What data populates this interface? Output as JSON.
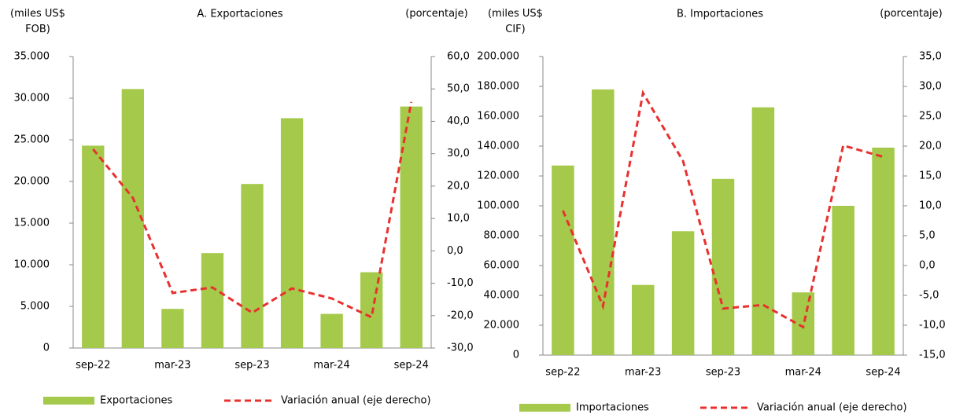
{
  "chart_data": [
    {
      "type": "combo",
      "title": "A. Exportaciones",
      "y_label": "(miles US$ FOB)",
      "y2_label": "(porcentaje)",
      "categories": [
        "sep-22",
        null,
        "mar-23",
        null,
        "sep-23",
        null,
        "mar-24",
        null,
        "sep-24"
      ],
      "series": [
        {
          "name": "Exportaciones",
          "mark": "bar",
          "color": "#a5c94a",
          "values": [
            24300,
            31100,
            4700,
            11400,
            19700,
            27600,
            4100,
            9100,
            29000
          ]
        },
        {
          "name": "Variación anual (eje derecho)",
          "mark": "line",
          "axis": "y2",
          "color": "#e8312f",
          "values": [
            31.4,
            16.4,
            -13,
            -11.3,
            -19.1,
            -11.6,
            -14.7,
            -20.5,
            46
          ]
        }
      ],
      "ylim": [
        0,
        35000
      ],
      "yticks": [
        {
          "value": 0,
          "label": "0"
        },
        {
          "value": 5000,
          "label": "5.000"
        },
        {
          "value": 10000,
          "label": "10.000"
        },
        {
          "value": 15000,
          "label": "15.000"
        },
        {
          "value": 20000,
          "label": "20.000"
        },
        {
          "value": 25000,
          "label": "25.000"
        },
        {
          "value": 30000,
          "label": "30.000"
        },
        {
          "value": 35000,
          "label": "35.000"
        }
      ],
      "y2lim": [
        -30,
        60
      ],
      "y2ticks": [
        {
          "value": -30,
          "label": "-30,0"
        },
        {
          "value": -20,
          "label": "-20,0"
        },
        {
          "value": -10,
          "label": "-10,0"
        },
        {
          "value": 0,
          "label": "0,0"
        },
        {
          "value": 10,
          "label": "10,0"
        },
        {
          "value": 20,
          "label": "20,0"
        },
        {
          "value": 30,
          "label": "30,0"
        },
        {
          "value": 40,
          "label": "40,0"
        },
        {
          "value": 50,
          "label": "50,0"
        },
        {
          "value": 60,
          "label": "60,0"
        }
      ],
      "grid": false
    },
    {
      "type": "combo",
      "title": "B. Importaciones",
      "y_label": "(miles US$ CIF)",
      "y2_label": "(porcentaje)",
      "categories": [
        "sep-22",
        null,
        "mar-23",
        null,
        "sep-23",
        null,
        "mar-24",
        null,
        "sep-24"
      ],
      "series": [
        {
          "name": "Importaciones",
          "mark": "bar",
          "color": "#a5c94a",
          "values": [
            127000,
            178000,
            47000,
            83000,
            118000,
            166000,
            42000,
            100000,
            139000
          ]
        },
        {
          "name": "Variación anual (eje derecho)",
          "mark": "line",
          "axis": "y2",
          "color": "#e8312f",
          "values": [
            9.2,
            -6.8,
            28.9,
            17.5,
            -7.2,
            -6.6,
            -10.3,
            20.1,
            18.2
          ]
        }
      ],
      "ylim": [
        0,
        200000
      ],
      "yticks": [
        {
          "value": 0,
          "label": "0"
        },
        {
          "value": 20000,
          "label": "20.000"
        },
        {
          "value": 40000,
          "label": "40.000"
        },
        {
          "value": 60000,
          "label": "60.000"
        },
        {
          "value": 80000,
          "label": "80.000"
        },
        {
          "value": 100000,
          "label": "100.000"
        },
        {
          "value": 120000,
          "label": "120.000"
        },
        {
          "value": 140000,
          "label": "140.000"
        },
        {
          "value": 160000,
          "label": "160.000"
        },
        {
          "value": 180000,
          "label": "180.000"
        },
        {
          "value": 200000,
          "label": "200.000"
        }
      ],
      "y2lim": [
        -15,
        35
      ],
      "y2ticks": [
        {
          "value": -15,
          "label": "-15,0"
        },
        {
          "value": -10,
          "label": "-10,0"
        },
        {
          "value": -5,
          "label": "-5,0"
        },
        {
          "value": 0,
          "label": "0,0"
        },
        {
          "value": 5,
          "label": "5,0"
        },
        {
          "value": 10,
          "label": "10,0"
        },
        {
          "value": 15,
          "label": "15,0"
        },
        {
          "value": 20,
          "label": "20,0"
        },
        {
          "value": 25,
          "label": "25,0"
        },
        {
          "value": 30,
          "label": "30,0"
        },
        {
          "value": 35,
          "label": "35,0"
        }
      ],
      "grid": false
    }
  ]
}
